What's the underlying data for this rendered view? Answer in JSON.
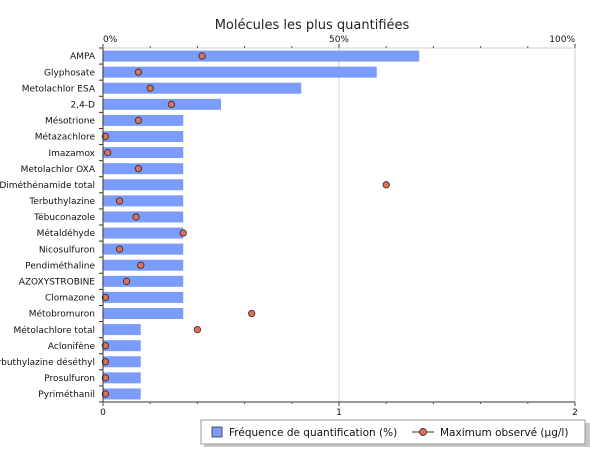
{
  "chart_data": {
    "type": "bar",
    "title": "Molécules les plus quantifiées",
    "categories": [
      "AMPA",
      "Glyphosate",
      "Metolachlor ESA",
      "2,4-D",
      "Mésotrione",
      "Métazachlore",
      "Imazamox",
      "Metolachlor OXA",
      "Diméthénamide total",
      "Terbuthylazine",
      "Tébuconazole",
      "Métaldéhyde",
      "Nicosulfuron",
      "Pendiméthaline",
      "AZOXYSTROBINE",
      "Clomazone",
      "Métobromuron",
      "Métolachlore total",
      "Aclonifène",
      "Terbuthylazine déséthyl",
      "Prosulfuron",
      "Pyriméthanil"
    ],
    "series": [
      {
        "name": "Fréquence de quantification (%)",
        "kind": "bar",
        "axis": "top",
        "color": "#7b9cf8",
        "values": [
          67,
          58,
          42,
          25,
          17,
          17,
          17,
          17,
          17,
          17,
          17,
          17,
          17,
          17,
          17,
          17,
          17,
          8,
          8,
          8,
          8,
          8
        ]
      },
      {
        "name": "Maximum observé (µg/l)",
        "kind": "marker",
        "axis": "bottom",
        "color": "#e07058",
        "values": [
          0.42,
          0.15,
          0.2,
          0.29,
          0.15,
          0.01,
          0.02,
          0.15,
          1.2,
          0.07,
          0.14,
          0.34,
          0.07,
          0.16,
          0.1,
          0.01,
          0.63,
          0.4,
          0.01,
          0.01,
          0.01,
          0.01
        ]
      }
    ],
    "top_axis": {
      "range": [
        0,
        100
      ],
      "ticks": [
        "0%",
        "50%",
        "100%"
      ],
      "tick_values": [
        0,
        50,
        100
      ]
    },
    "bottom_axis": {
      "range": [
        0,
        2
      ],
      "ticks": [
        "0",
        "1",
        "2"
      ],
      "tick_values": [
        0,
        1,
        2
      ]
    },
    "grid": true,
    "legend_position": "bottom-right"
  }
}
